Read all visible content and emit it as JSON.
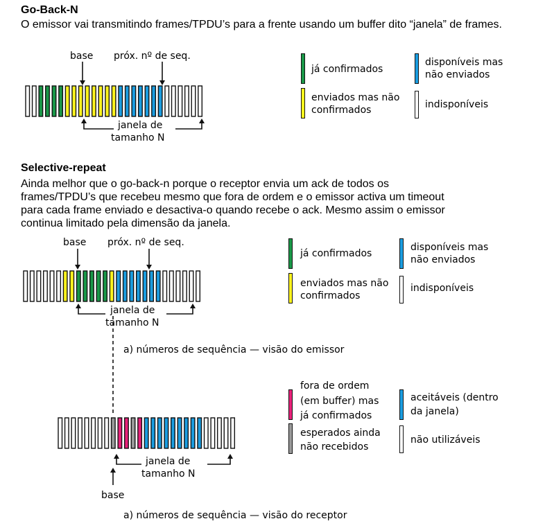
{
  "gbn": {
    "title": "Go-Back-N",
    "text": "O emissor vai transmitindo frames/TPDU’s para a frente usando um buffer dito “janela” de frames.",
    "label_base": "base",
    "label_next": "próx. nº de seq.",
    "window_line1": "janela de",
    "window_line2": "tamanho N",
    "frames": [
      "u",
      "u",
      "g",
      "g",
      "g",
      "g",
      "y",
      "y",
      "y",
      "y",
      "y",
      "y",
      "y",
      "y",
      "b",
      "b",
      "b",
      "b",
      "b",
      "b",
      "b",
      "u",
      "u",
      "u",
      "u",
      "u",
      "u"
    ],
    "legend": {
      "confirmed": "já confirmados",
      "sent_line1": "enviados mas não",
      "sent_line2": "confirmados",
      "available_line1": "disponíveis mas",
      "available_line2": "não enviados",
      "unavailable": "indisponíveis"
    }
  },
  "sr": {
    "title": "Selective-repeat",
    "text_lines": [
      "Ainda melhor que o go-back-n porque o receptor envia um ack de todos os",
      "frames/TPDU’s que recebeu mesmo que fora de ordem e o emissor activa um timeout",
      "para cada frame enviado e desactiva-o quando recebe o ack. Mesmo assim o emissor",
      "continua limitado pela dimensão da janela."
    ],
    "sender": {
      "label_base": "base",
      "label_next": "próx. nº de seq.",
      "window_line1": "janela de",
      "window_line2": "tamanho N",
      "caption": "a) números de sequência — visão do emissor",
      "frames": [
        "u",
        "u",
        "u",
        "u",
        "u",
        "u",
        "y",
        "y",
        "g",
        "g",
        "g",
        "g",
        "g",
        "y",
        "b",
        "b",
        "b",
        "b",
        "b",
        "b",
        "b",
        "u",
        "u",
        "u",
        "u",
        "u",
        "u"
      ],
      "legend": {
        "confirmed": "já confirmados",
        "sent_line1": "enviados mas não",
        "sent_line2": "confirmados",
        "available_line1": "disponíveis mas",
        "available_line2": "não enviados",
        "unavailable": "indisponíveis"
      }
    },
    "receiver": {
      "label_base": "base",
      "window_line1": "janela de",
      "window_line2": "tamanho N",
      "caption": "a) números de sequência — visão do receptor",
      "frames": [
        "u",
        "u",
        "u",
        "u",
        "u",
        "u",
        "u",
        "u",
        "g",
        "p",
        "p",
        "g",
        "p",
        "b",
        "b",
        "b",
        "b",
        "b",
        "b",
        "b",
        "b",
        "b",
        "u",
        "u",
        "u",
        "u",
        "u"
      ],
      "legend": {
        "out_of_order_line1": "fora de ordem",
        "out_of_order_line2": "(em buffer) mas",
        "out_of_order_line3": "já confirmados",
        "expected_line1": "esperados ainda",
        "expected_line2": "não recebidos",
        "acceptable_line1": "aceitáveis (dentro",
        "acceptable_line2": "da janela)",
        "unused": "não utilizáveis"
      }
    }
  },
  "colors": {
    "green": "#1a9848",
    "yellow": "#fff41e",
    "blue": "#1b9de0",
    "pink": "#e8217a",
    "gray": "#9a9a9a",
    "empty": "#ffffff",
    "border": "#111111"
  }
}
